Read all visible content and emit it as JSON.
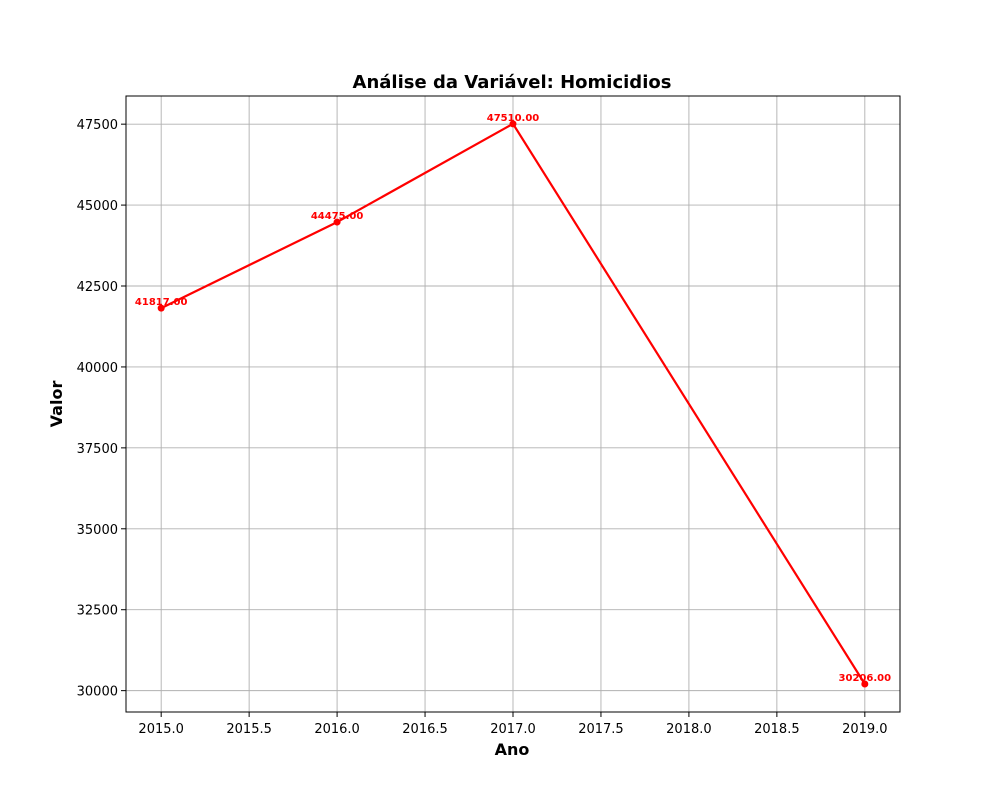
{
  "chart_data": {
    "type": "line",
    "title": "Análise da Variável: Homicidios",
    "xlabel": "Ano",
    "ylabel": "Valor",
    "x": [
      2015,
      2016,
      2017,
      2019
    ],
    "series": [
      {
        "values": [
          41817,
          44475,
          47510,
          30206
        ],
        "labels": [
          "41817.00",
          "44475.00",
          "47510.00",
          "30206.00"
        ],
        "color": "#ff0000"
      }
    ],
    "xlim": [
      2014.8,
      2019.2
    ],
    "ylim": [
      29340,
      48370
    ],
    "xticks": [
      2015.0,
      2015.5,
      2016.0,
      2016.5,
      2017.0,
      2017.5,
      2018.0,
      2018.5,
      2019.0
    ],
    "xtick_labels": [
      "2015.0",
      "2015.5",
      "2016.0",
      "2016.5",
      "2017.0",
      "2017.5",
      "2018.0",
      "2018.5",
      "2019.0"
    ],
    "yticks": [
      30000,
      32500,
      35000,
      37500,
      40000,
      42500,
      45000,
      47500
    ],
    "ytick_labels": [
      "30000",
      "32500",
      "35000",
      "37500",
      "40000",
      "42500",
      "45000",
      "47500"
    ],
    "grid": true,
    "marker": "circle"
  }
}
